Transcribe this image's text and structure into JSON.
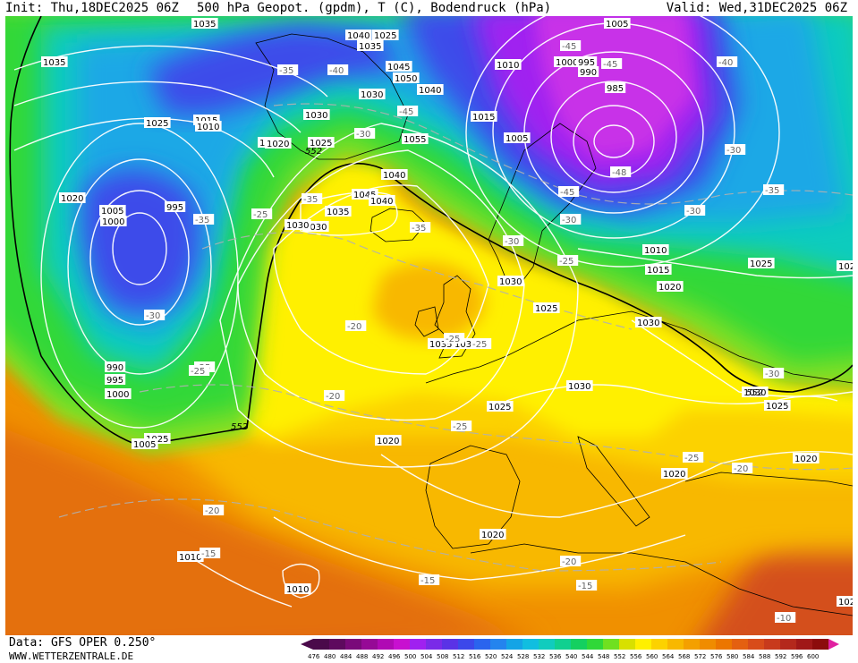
{
  "header": {
    "init": "Init: Thu,18DEC2025 06Z",
    "title": "500 hPa Geopot. (gpdm), T (C), Bodendruck (hPa)",
    "valid": "Valid: Wed,31DEC2025 06Z"
  },
  "footer": {
    "data_source": "Data: GFS OPER 0.250°",
    "website": "WWW.WETTERZENTRALE.DE"
  },
  "legend": {
    "values": [
      "476",
      "480",
      "484",
      "488",
      "492",
      "496",
      "500",
      "504",
      "508",
      "512",
      "516",
      "520",
      "524",
      "528",
      "532",
      "536",
      "540",
      "544",
      "548",
      "552",
      "556",
      "560",
      "564",
      "568",
      "572",
      "576",
      "580",
      "584",
      "588",
      "592",
      "596",
      "600"
    ],
    "colors": [
      "#4a0a4a",
      "#5e0a5e",
      "#7a0a7a",
      "#960a96",
      "#b00ab4",
      "#c810d0",
      "#a020f0",
      "#7a2ae8",
      "#5a32e6",
      "#3c48ea",
      "#2a64ee",
      "#2484ee",
      "#14a4e6",
      "#10bee0",
      "#10ccbe",
      "#10d090",
      "#14d060",
      "#30d838",
      "#70e020",
      "#d8e000",
      "#fff000",
      "#fcd200",
      "#f8b800",
      "#f4a000",
      "#f08c00",
      "#ec7600",
      "#e46010",
      "#d84c1a",
      "#c83a1c",
      "#b4281c",
      "#a01818",
      "#8c0c0c"
    ]
  },
  "map": {
    "colors": {
      "purple": "#c830e8",
      "violet": "#a020f0",
      "blue": "#3c4cea",
      "sky": "#1ea8e6",
      "cyan": "#10ccbe",
      "green": "#30d838",
      "lime": "#88e020",
      "yellow": "#fff000",
      "gold": "#fcd200",
      "orange_light": "#f8b800",
      "orange": "#f09000",
      "orange_dark": "#e47010",
      "red": "#d4501c"
    },
    "isobar_labels": [
      "1035",
      "1040",
      "1035",
      "1045",
      "1050",
      "1040",
      "1030",
      "1035",
      "1025",
      "1015",
      "1010",
      "1020",
      "1030",
      "1025",
      "1010",
      "1000",
      "995",
      "990",
      "985",
      "1005",
      "1005",
      "1015",
      "1020",
      "995",
      "1005",
      "1000",
      "1040",
      "1045",
      "1040",
      "1035",
      "1030",
      "1055",
      "1030",
      "1025",
      "1035",
      "1030",
      "1010",
      "1015",
      "1020",
      "1025",
      "1025",
      "1020",
      "1030",
      "1025",
      "990",
      "995",
      "1000",
      "1005",
      "1020",
      "1030",
      "1025",
      "1030",
      "1025",
      "1020",
      "1020",
      "1010",
      "1010",
      "102",
      "102",
      "1035",
      "1020"
    ],
    "temperature_labels": [
      "-35",
      "-40",
      "-45",
      "-40",
      "-45",
      "-48",
      "-45",
      "-35",
      "-30",
      "-35",
      "-35",
      "-30",
      "-35",
      "-25",
      "-30",
      "-25",
      "-35",
      "-30",
      "-25",
      "-25",
      "-30",
      "-25",
      "-20",
      "-25",
      "-25",
      "-20",
      "-20",
      "-15",
      "-15",
      "-15",
      "-20",
      "-10",
      "-45",
      "-30",
      "-25",
      "-25",
      "-30",
      "-20"
    ],
    "height_labels": [
      "552",
      "552",
      "552"
    ]
  }
}
